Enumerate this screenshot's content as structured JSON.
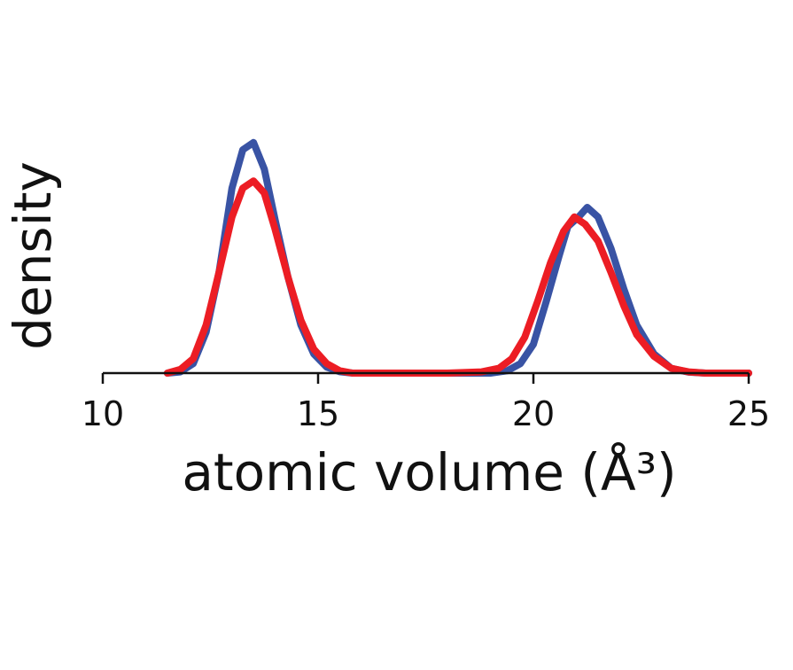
{
  "chart_data": {
    "type": "line",
    "title": "",
    "xlabel": "atomic volume (Å³)",
    "ylabel": "density",
    "xlim": [
      10,
      25
    ],
    "ylim": [
      0,
      1.0
    ],
    "x_ticks": [
      "10",
      "15",
      "20",
      "25"
    ],
    "y_ticks": [],
    "grid": false,
    "legend": "none",
    "series": [
      {
        "color": "#3953a4",
        "x": [
          11.5,
          11.8,
          12.1,
          12.4,
          12.7,
          13.0,
          13.25,
          13.5,
          13.75,
          14.0,
          14.3,
          14.6,
          14.9,
          15.2,
          15.5,
          15.8,
          16.2,
          17.0,
          18.0,
          19.0,
          19.4,
          19.7,
          20.0,
          20.3,
          20.6,
          20.8,
          21.05,
          21.25,
          21.5,
          21.8,
          22.1,
          22.4,
          22.8,
          23.2,
          23.6,
          24.0,
          24.5,
          25.0
        ],
        "y": [
          0.0,
          0.005,
          0.04,
          0.17,
          0.42,
          0.77,
          0.93,
          0.96,
          0.85,
          0.64,
          0.4,
          0.2,
          0.08,
          0.025,
          0.006,
          0.0,
          0.0,
          0.0,
          0.0,
          0.0,
          0.01,
          0.04,
          0.12,
          0.3,
          0.49,
          0.61,
          0.65,
          0.69,
          0.65,
          0.52,
          0.35,
          0.2,
          0.08,
          0.02,
          0.004,
          0.0,
          0.0,
          0.0
        ]
      },
      {
        "color": "#ec1d24",
        "x": [
          11.5,
          11.8,
          12.1,
          12.4,
          12.7,
          13.0,
          13.25,
          13.5,
          13.75,
          14.0,
          14.3,
          14.6,
          14.9,
          15.2,
          15.5,
          15.8,
          16.2,
          17.0,
          18.0,
          18.8,
          19.2,
          19.5,
          19.8,
          20.1,
          20.4,
          20.7,
          20.95,
          21.2,
          21.5,
          21.8,
          22.1,
          22.4,
          22.8,
          23.2,
          23.6,
          24.0,
          24.5,
          25.0
        ],
        "y": [
          0.0,
          0.015,
          0.06,
          0.2,
          0.42,
          0.65,
          0.77,
          0.8,
          0.75,
          0.6,
          0.4,
          0.22,
          0.1,
          0.04,
          0.01,
          0.0,
          0.0,
          0.0,
          0.0,
          0.005,
          0.02,
          0.06,
          0.15,
          0.3,
          0.46,
          0.59,
          0.65,
          0.62,
          0.55,
          0.42,
          0.28,
          0.16,
          0.07,
          0.02,
          0.005,
          0.0,
          0.0,
          0.0
        ]
      }
    ]
  }
}
